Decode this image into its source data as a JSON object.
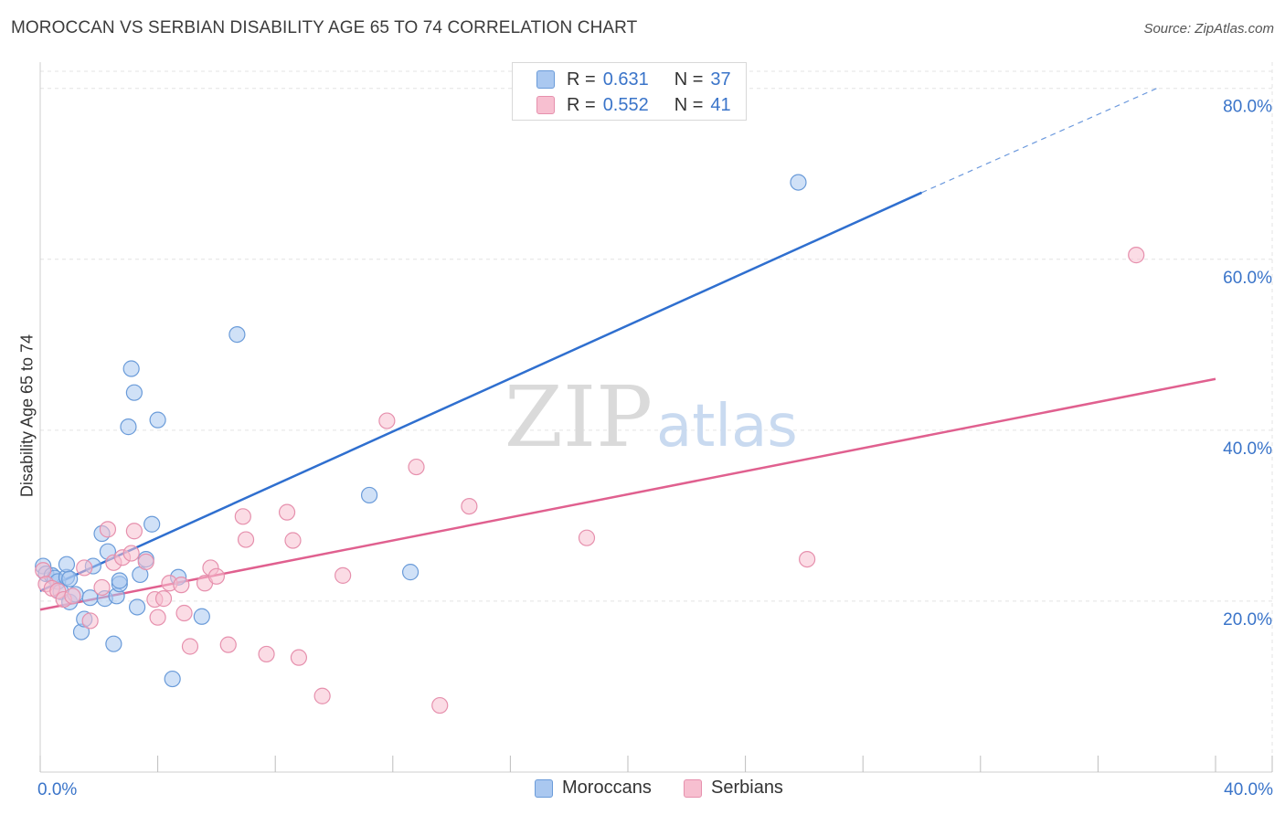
{
  "title": "MOROCCAN VS SERBIAN DISABILITY AGE 65 TO 74 CORRELATION CHART",
  "source": "Source: ZipAtlas.com",
  "watermark": {
    "zip": "ZIP",
    "atlas": "atlas"
  },
  "legend": {
    "moroccans": {
      "r_label": "R =",
      "r_value": "0.631",
      "n_label": "N =",
      "n_value": "37"
    },
    "serbians": {
      "r_label": "R =",
      "r_value": "0.552",
      "n_label": "N =",
      "n_value": "41"
    }
  },
  "bottom_legend": {
    "moroccans": "Moroccans",
    "serbians": "Serbians"
  },
  "colors": {
    "moroccans_fill": "#aac8f0",
    "moroccans_stroke": "#6a9bd9",
    "moroccans_line": "#2f6fcf",
    "serbians_fill": "#f7bfd0",
    "serbians_stroke": "#e690ad",
    "serbians_line": "#e0608f",
    "axis_label": "#3a74c9",
    "grid": "#e3e3e3"
  },
  "chart_data": {
    "type": "scatter",
    "xlabel": "",
    "ylabel": "Disability Age 65 to 74",
    "xlim": [
      0,
      40
    ],
    "ylim": [
      0,
      82
    ],
    "x_tick_labels": [
      {
        "value": 0,
        "label": "0.0%"
      },
      {
        "value": 40,
        "label": "40.0%"
      }
    ],
    "y_tick_labels": [
      {
        "value": 20,
        "label": "20.0%"
      },
      {
        "value": 40,
        "label": "40.0%"
      },
      {
        "value": 60,
        "label": "60.0%"
      },
      {
        "value": 80,
        "label": "80.0%"
      }
    ],
    "x_minor_ticks": [
      0,
      4,
      8,
      12,
      16,
      20,
      24,
      28,
      32,
      36,
      40
    ],
    "grid": true,
    "series": [
      {
        "name": "Moroccans",
        "R": 0.631,
        "N": 37,
        "points": [
          [
            0.1,
            24.1
          ],
          [
            0.2,
            23.2
          ],
          [
            0.4,
            23.0
          ],
          [
            0.5,
            22.7
          ],
          [
            0.6,
            22.3
          ],
          [
            0.7,
            21.1
          ],
          [
            0.9,
            22.8
          ],
          [
            0.9,
            24.3
          ],
          [
            1.0,
            22.6
          ],
          [
            1.0,
            19.9
          ],
          [
            1.2,
            20.8
          ],
          [
            1.4,
            16.4
          ],
          [
            1.5,
            17.9
          ],
          [
            1.7,
            20.4
          ],
          [
            1.8,
            24.1
          ],
          [
            2.1,
            27.9
          ],
          [
            2.2,
            20.3
          ],
          [
            2.3,
            25.8
          ],
          [
            2.5,
            15.0
          ],
          [
            2.6,
            20.6
          ],
          [
            2.7,
            22.0
          ],
          [
            2.7,
            22.4
          ],
          [
            3.0,
            40.4
          ],
          [
            3.1,
            47.2
          ],
          [
            3.2,
            44.4
          ],
          [
            3.3,
            19.3
          ],
          [
            3.4,
            23.1
          ],
          [
            3.6,
            24.9
          ],
          [
            3.8,
            29.0
          ],
          [
            4.0,
            41.2
          ],
          [
            4.5,
            10.9
          ],
          [
            4.7,
            22.8
          ],
          [
            5.5,
            18.2
          ],
          [
            6.7,
            51.2
          ],
          [
            11.2,
            32.4
          ],
          [
            12.6,
            23.4
          ],
          [
            25.8,
            69.0
          ]
        ],
        "trend": {
          "x0": 0,
          "y0": 21.2,
          "x1": 30,
          "y1": 67.8,
          "dashed_x1": 38,
          "dashed_y1": 80
        }
      },
      {
        "name": "Serbians",
        "R": 0.552,
        "N": 41,
        "points": [
          [
            0.1,
            23.6
          ],
          [
            0.2,
            22.0
          ],
          [
            0.4,
            21.5
          ],
          [
            0.6,
            21.2
          ],
          [
            0.8,
            20.2
          ],
          [
            1.1,
            20.6
          ],
          [
            1.5,
            23.9
          ],
          [
            1.7,
            17.7
          ],
          [
            2.1,
            21.6
          ],
          [
            2.3,
            28.4
          ],
          [
            2.5,
            24.5
          ],
          [
            2.8,
            25.1
          ],
          [
            3.1,
            25.6
          ],
          [
            3.2,
            28.2
          ],
          [
            3.6,
            24.6
          ],
          [
            3.9,
            20.2
          ],
          [
            4.0,
            18.1
          ],
          [
            4.2,
            20.3
          ],
          [
            4.4,
            22.1
          ],
          [
            4.8,
            21.9
          ],
          [
            4.9,
            18.6
          ],
          [
            5.1,
            14.7
          ],
          [
            5.6,
            22.1
          ],
          [
            5.8,
            23.9
          ],
          [
            6.0,
            22.9
          ],
          [
            6.4,
            14.9
          ],
          [
            6.9,
            29.9
          ],
          [
            7.0,
            27.2
          ],
          [
            7.7,
            13.8
          ],
          [
            8.4,
            30.4
          ],
          [
            8.6,
            27.1
          ],
          [
            8.8,
            13.4
          ],
          [
            9.6,
            8.9
          ],
          [
            10.3,
            23.0
          ],
          [
            11.8,
            41.1
          ],
          [
            12.8,
            35.7
          ],
          [
            13.6,
            7.8
          ],
          [
            14.6,
            31.1
          ],
          [
            18.6,
            27.4
          ],
          [
            26.1,
            24.9
          ],
          [
            37.3,
            60.5
          ]
        ],
        "trend": {
          "x0": 0,
          "y0": 19.0,
          "x1": 40,
          "y1": 46.0
        }
      }
    ]
  }
}
